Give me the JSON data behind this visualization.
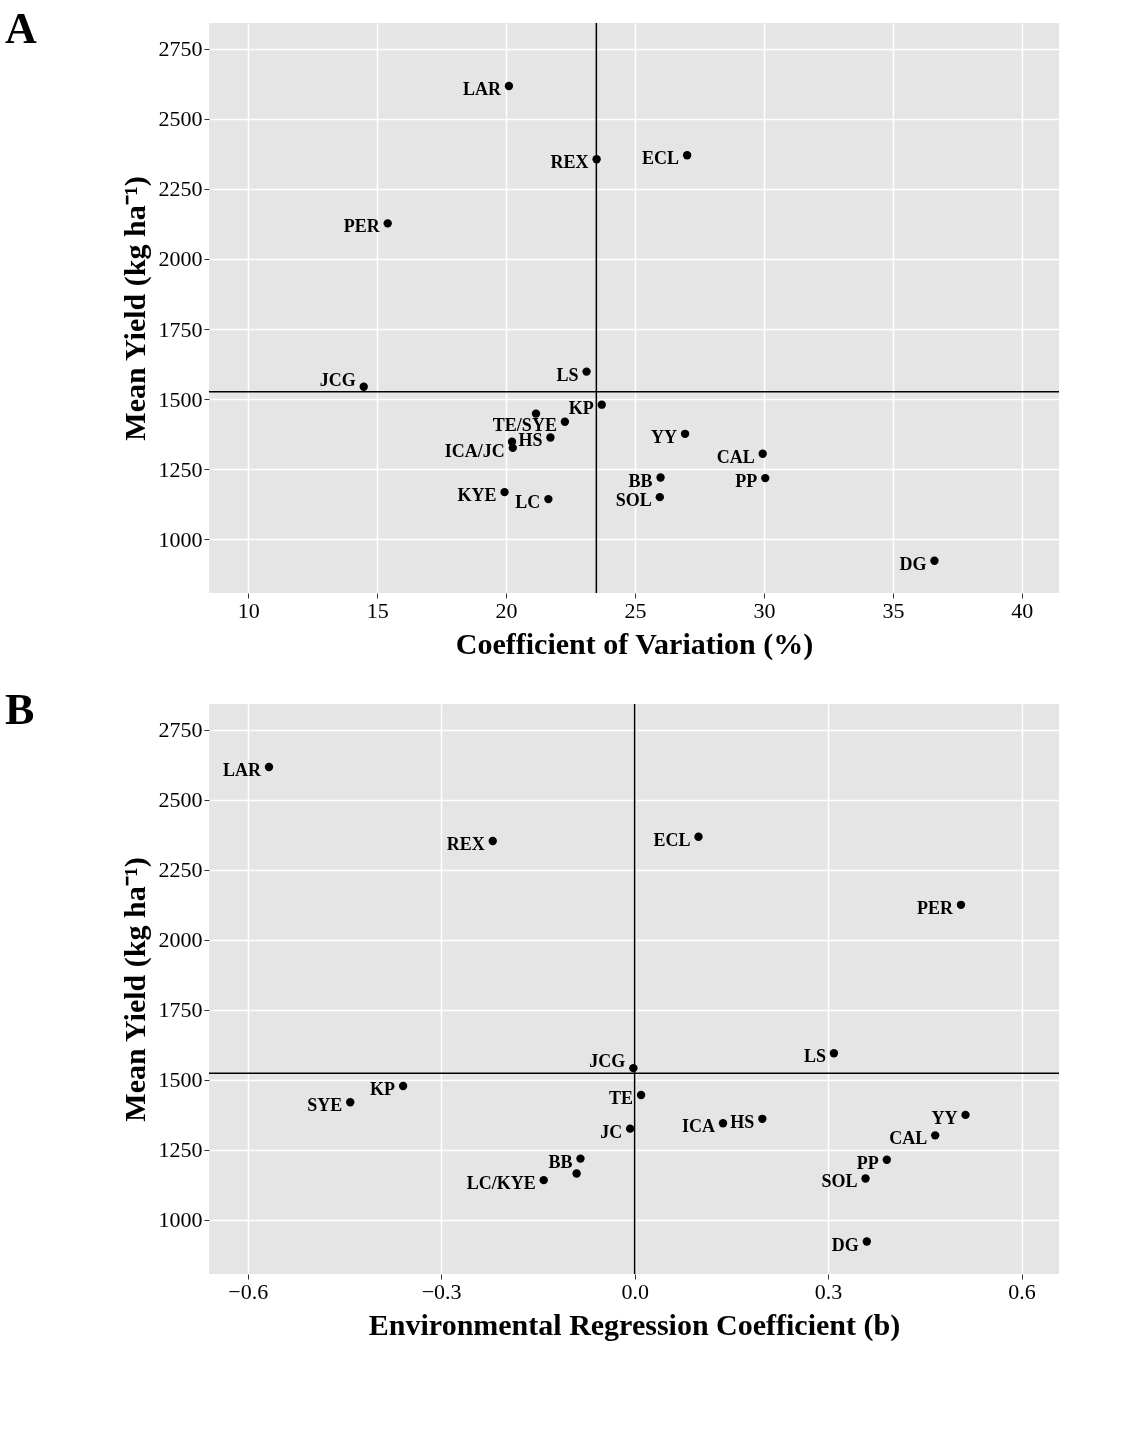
{
  "chart_data": [
    {
      "type": "scatter",
      "title": "A",
      "xlabel": "Coefficient of Variation (%)",
      "ylabel": "Mean Yield (kg ha⁻¹)",
      "xlim": [
        8.48,
        41.44
      ],
      "ylim": [
        808,
        2842
      ],
      "xticks": [
        10,
        15,
        20,
        25,
        30,
        35,
        40
      ],
      "yticks": [
        1000,
        1250,
        1500,
        1750,
        2000,
        2250,
        2500,
        2750
      ],
      "grid": true,
      "marker": "circle",
      "legend": false,
      "series": [
        {
          "color": "#000000",
          "x": [
            20.11,
            23.51,
            27.02,
            15.41,
            14.48,
            23.12,
            23.71,
            21.16,
            22.28,
            21.72,
            20.23,
            20.26,
            19.94,
            21.64,
            26.94,
            29.95,
            25.99,
            30.05,
            25.96,
            36.61
          ],
          "values": [
            2617,
            2356,
            2370,
            2127,
            1544,
            1598,
            1480,
            1448,
            1419,
            1363,
            1348,
            1326,
            1168,
            1143,
            1376,
            1305,
            1220,
            1218,
            1150,
            923
          ]
        }
      ],
      "ref_lines": [
        {
          "axis": "x",
          "value": 23.5,
          "color": "#000000"
        },
        {
          "axis": "y",
          "value": 1526,
          "color": "#000000"
        }
      ],
      "annotations": [
        {
          "text": "LAR",
          "x": 20.11,
          "y": 2617
        },
        {
          "text": "REX",
          "x": 23.51,
          "y": 2356
        },
        {
          "text": "ECL",
          "x": 27.02,
          "y": 2370
        },
        {
          "text": "PER",
          "x": 15.41,
          "y": 2127
        },
        {
          "text": "JCG",
          "x": 14.48,
          "y": 1544
        },
        {
          "text": "LS",
          "x": 23.12,
          "y": 1598
        },
        {
          "text": "KP",
          "x": 23.71,
          "y": 1480
        },
        {
          "text": "TE/SYE",
          "x": 22.28,
          "y": 1419
        },
        {
          "text": "HS",
          "x": 21.72,
          "y": 1363
        },
        {
          "text": "ICA/JC",
          "x": 20.26,
          "y": 1326
        },
        {
          "text": "KYE",
          "x": 19.94,
          "y": 1168
        },
        {
          "text": "LC",
          "x": 21.64,
          "y": 1143
        },
        {
          "text": "YY",
          "x": 26.94,
          "y": 1376
        },
        {
          "text": "CAL",
          "x": 29.95,
          "y": 1305
        },
        {
          "text": "BB",
          "x": 25.99,
          "y": 1220
        },
        {
          "text": "PP",
          "x": 30.05,
          "y": 1218
        },
        {
          "text": "SOL",
          "x": 25.96,
          "y": 1150
        },
        {
          "text": "DG",
          "x": 36.61,
          "y": 923
        }
      ]
    },
    {
      "type": "scatter",
      "title": "B",
      "xlabel": "Environmental Regression Coefficient (b)",
      "ylabel": "Mean Yield (kg ha⁻¹)",
      "xlim": [
        -0.66,
        0.658
      ],
      "ylim": [
        807,
        2842
      ],
      "xticks": [
        {
          "value": -0.6,
          "label": "−0.6"
        },
        {
          "value": -0.3,
          "label": "−0.3"
        },
        {
          "value": 0,
          "label": "0.0"
        },
        {
          "value": 0.3,
          "label": "0.3"
        },
        {
          "value": 0.6,
          "label": "0.6"
        }
      ],
      "yticks": [
        1000,
        1250,
        1500,
        1750,
        2000,
        2250,
        2500,
        2750
      ],
      "grid": true,
      "marker": "circle",
      "legend": false,
      "series": [
        {
          "color": "#000000",
          "x": [
            -0.567,
            -0.22,
            -0.441,
            -0.359,
            -0.084,
            -0.09,
            -0.141,
            0.099,
            0.506,
            0.309,
            -0.002,
            0.01,
            -0.007,
            0.137,
            0.198,
            0.513,
            0.466,
            0.391,
            0.358,
            0.36
          ],
          "values": [
            2617,
            2353,
            1420,
            1478,
            1219,
            1166,
            1142,
            2368,
            2125,
            1595,
            1542,
            1446,
            1326,
            1345,
            1361,
            1375,
            1302,
            1215,
            1148,
            923
          ]
        }
      ],
      "ref_lines": [
        {
          "axis": "x",
          "value": 0,
          "color": "#000000"
        },
        {
          "axis": "y",
          "value": 1524,
          "color": "#000000"
        }
      ],
      "annotations": [
        {
          "text": "LAR",
          "x": -0.567,
          "y": 2617
        },
        {
          "text": "REX",
          "x": -0.22,
          "y": 2353
        },
        {
          "text": "SYE",
          "x": -0.441,
          "y": 1420
        },
        {
          "text": "KP",
          "x": -0.359,
          "y": 1478
        },
        {
          "text": "BB",
          "x": -0.084,
          "y": 1219
        },
        {
          "text": "LC/KYE",
          "x": -0.141,
          "y": 1142
        },
        {
          "text": "ECL",
          "x": 0.099,
          "y": 2368
        },
        {
          "text": "PER",
          "x": 0.506,
          "y": 2125
        },
        {
          "text": "LS",
          "x": 0.309,
          "y": 1595
        },
        {
          "text": "JCG",
          "x": -0.002,
          "y": 1542
        },
        {
          "text": "TE",
          "x": 0.01,
          "y": 1446
        },
        {
          "text": "JC",
          "x": -0.007,
          "y": 1326
        },
        {
          "text": "ICA",
          "x": 0.137,
          "y": 1345
        },
        {
          "text": "HS",
          "x": 0.198,
          "y": 1361
        },
        {
          "text": "YY",
          "x": 0.513,
          "y": 1375
        },
        {
          "text": "CAL",
          "x": 0.466,
          "y": 1302
        },
        {
          "text": "PP",
          "x": 0.391,
          "y": 1215
        },
        {
          "text": "SOL",
          "x": 0.358,
          "y": 1148
        },
        {
          "text": "DG",
          "x": 0.36,
          "y": 923
        }
      ]
    }
  ]
}
